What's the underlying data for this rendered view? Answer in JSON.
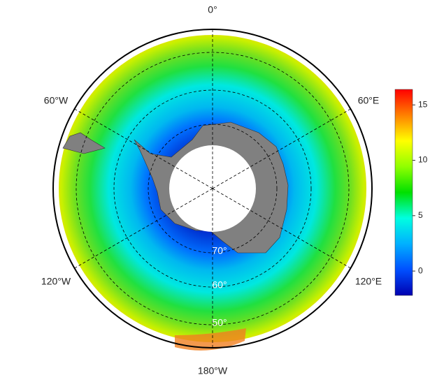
{
  "map": {
    "longitude_labels": [
      "0°",
      "60°E",
      "120°E",
      "180°W",
      "120°W",
      "60°W"
    ],
    "latitude_labels": [
      "70°",
      "60°",
      "50°"
    ]
  },
  "colorbar": {
    "lim": [
      -2.2,
      16.4
    ],
    "ticks": [
      0,
      5,
      10,
      15
    ],
    "colors": [
      "#0000b0",
      "#0050ff",
      "#00b0ff",
      "#00ffe0",
      "#00e000",
      "#90ff00",
      "#ffff00",
      "#ff8000",
      "#ff0000"
    ]
  }
}
